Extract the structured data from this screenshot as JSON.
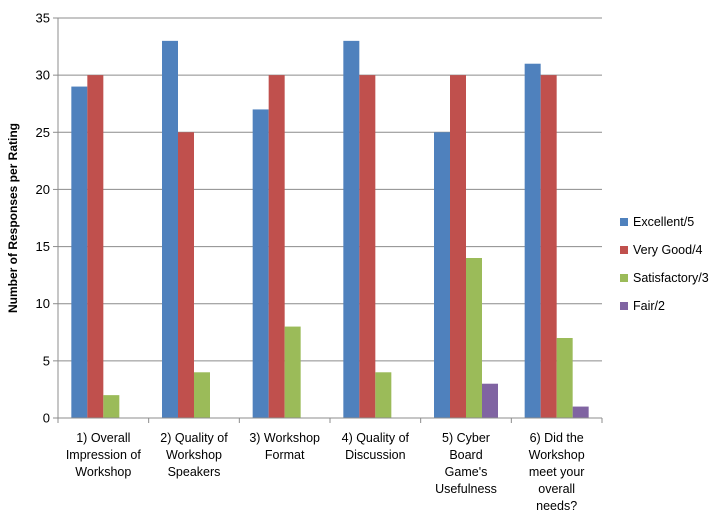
{
  "chart_data": {
    "type": "bar",
    "title": "",
    "xlabel": "",
    "ylabel": "Number of Responses per Rating",
    "ylim": [
      0,
      35
    ],
    "yticks": [
      0,
      5,
      10,
      15,
      20,
      25,
      30,
      35
    ],
    "grid": true,
    "legend_position": "right",
    "categories": [
      [
        "1) Overall",
        "Impression of",
        "Workshop"
      ],
      [
        "2) Quality of",
        "Workshop",
        "Speakers"
      ],
      [
        "3) Workshop",
        "Format"
      ],
      [
        "4) Quality of",
        "Discussion"
      ],
      [
        "5) Cyber",
        "Board",
        "Game's",
        "Usefulness"
      ],
      [
        "6) Did the",
        "Workshop",
        "meet your",
        "overall",
        "needs?"
      ]
    ],
    "series": [
      {
        "name": "Excellent/5",
        "color": "#4F81BD",
        "values": [
          29,
          33,
          27,
          33,
          25,
          31
        ]
      },
      {
        "name": "Very Good/4",
        "color": "#C0504D",
        "values": [
          30,
          25,
          30,
          30,
          30,
          30
        ]
      },
      {
        "name": "Satisfactory/3",
        "color": "#9BBB59",
        "values": [
          2,
          4,
          8,
          4,
          14,
          7
        ]
      },
      {
        "name": "Fair/2",
        "color": "#8064A2",
        "values": [
          0,
          0,
          0,
          0,
          3,
          1
        ]
      }
    ]
  }
}
